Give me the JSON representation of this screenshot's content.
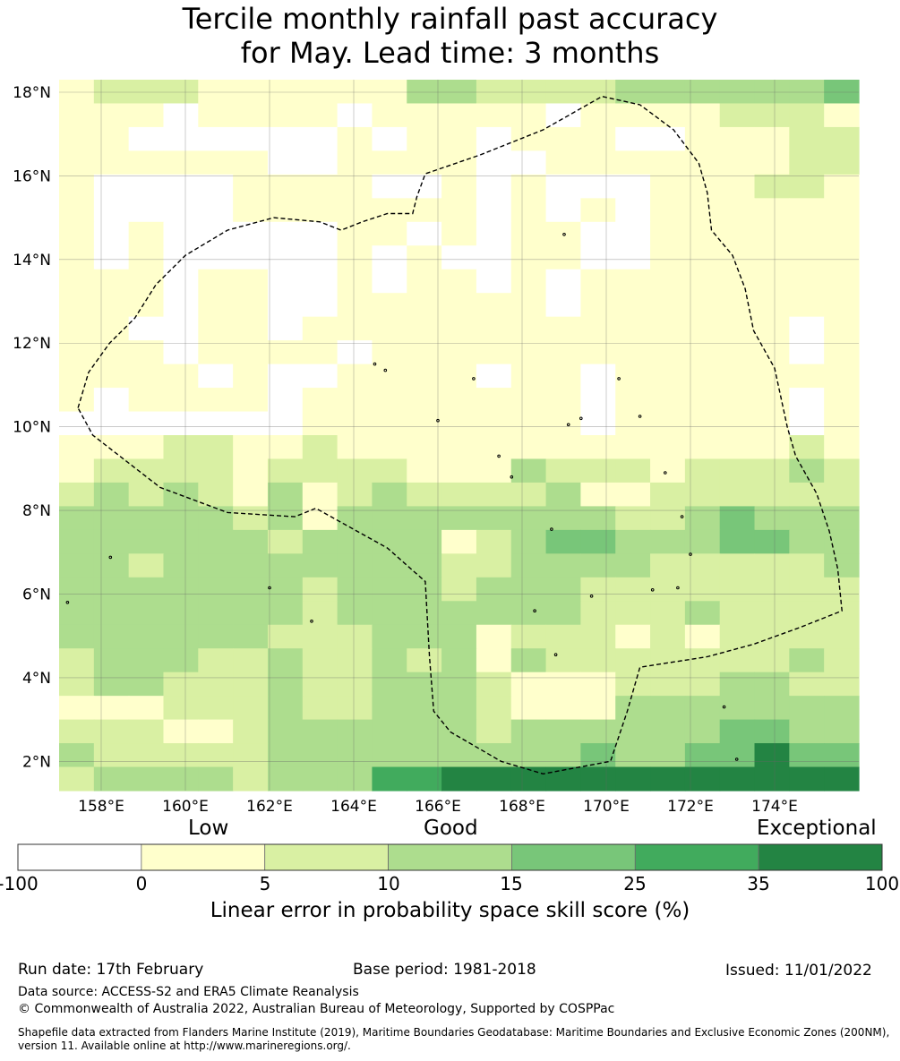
{
  "title": {
    "line1": "Tercile monthly rainfall past accuracy",
    "line2": "for May. Lead time: 3 months"
  },
  "map": {
    "lon_range": [
      157.0,
      176.0
    ],
    "lat_range": [
      1.3,
      18.3
    ],
    "lat_ticks": [
      {
        "value": 18,
        "label": "18°N"
      },
      {
        "value": 16,
        "label": "16°N"
      },
      {
        "value": 14,
        "label": "14°N"
      },
      {
        "value": 12,
        "label": "12°N"
      },
      {
        "value": 10,
        "label": "10°N"
      },
      {
        "value": 8,
        "label": "8°N"
      },
      {
        "value": 6,
        "label": "6°N"
      },
      {
        "value": 4,
        "label": "4°N"
      },
      {
        "value": 2,
        "label": "2°N"
      }
    ],
    "lon_ticks": [
      {
        "value": 158,
        "label": "158°E"
      },
      {
        "value": 160,
        "label": "160°E"
      },
      {
        "value": 162,
        "label": "162°E"
      },
      {
        "value": 164,
        "label": "164°E"
      },
      {
        "value": 166,
        "label": "166°E"
      },
      {
        "value": 168,
        "label": "168°E"
      },
      {
        "value": 170,
        "label": "170°E"
      },
      {
        "value": 172,
        "label": "172°E"
      },
      {
        "value": 174,
        "label": "174°E"
      }
    ],
    "grid": {
      "cols": 23,
      "rows": 30,
      "cells": [
        "12221111113322223333334",
        "11101111011111011112221",
        "11000000101101110011122",
        "11111100111100111111122",
        "10000111100101000111221",
        "10000111111101010111111",
        "10100000110101100111111",
        "10100000101001100111111",
        "11101100101101011111111",
        "11101100111111011111111",
        "11001101111111111111101",
        "11101111011111111111101",
        "11110100111101101111111",
        "10111101111111101111101",
        "00000001111111101111101",
        "11122112111111111111121",
        "12222122221113222122232",
        "23232131232222311222222",
        "33333231333333332234333",
        "33333323333123443334433",
        "33233333333223333222223",
        "33333332333233322222222",
        "33333332333333322232222",
        "33333322233312221212222",
        "23332232232313222222232",
        "23322232233321112223322",
        "11122232233321113333333",
        "22211233333323333334433",
        "32222233333333343344444",
        "23333233355564555555555"
      ],
      "overrides": [
        {
          "row": 29,
          "col": 11,
          "cat": 6
        },
        {
          "row": 29,
          "col": 13,
          "cat": 6
        },
        {
          "row": 29,
          "col": 14,
          "cat": 6
        },
        {
          "row": 29,
          "col": 15,
          "cat": 6
        },
        {
          "row": 29,
          "col": 16,
          "cat": 6
        },
        {
          "row": 29,
          "col": 17,
          "cat": 6
        },
        {
          "row": 29,
          "col": 18,
          "cat": 6
        },
        {
          "row": 29,
          "col": 19,
          "cat": 6
        },
        {
          "row": 29,
          "col": 20,
          "cat": 6
        },
        {
          "row": 29,
          "col": 21,
          "cat": 6
        },
        {
          "row": 29,
          "col": 22,
          "cat": 6
        },
        {
          "row": 28,
          "col": 20,
          "cat": 6
        }
      ]
    },
    "boundary": [
      [
        157.45,
        10.45
      ],
      [
        157.7,
        11.3
      ],
      [
        158.2,
        12.0
      ],
      [
        158.8,
        12.6
      ],
      [
        159.3,
        13.4
      ],
      [
        160.0,
        14.1
      ],
      [
        161.0,
        14.7
      ],
      [
        162.1,
        15.0
      ],
      [
        163.2,
        14.9
      ],
      [
        163.7,
        14.7
      ],
      [
        164.2,
        14.9
      ],
      [
        164.8,
        15.1
      ],
      [
        165.4,
        15.1
      ],
      [
        165.5,
        15.5
      ],
      [
        165.7,
        16.05
      ],
      [
        167.0,
        16.5
      ],
      [
        168.5,
        17.1
      ],
      [
        169.9,
        17.9
      ],
      [
        170.8,
        17.7
      ],
      [
        171.6,
        17.1
      ],
      [
        172.2,
        16.3
      ],
      [
        172.4,
        15.6
      ],
      [
        172.5,
        14.7
      ],
      [
        173.0,
        14.1
      ],
      [
        173.3,
        13.3
      ],
      [
        173.5,
        12.3
      ],
      [
        174.0,
        11.4
      ],
      [
        174.3,
        10.0
      ],
      [
        174.5,
        9.3
      ],
      [
        175.0,
        8.4
      ],
      [
        175.3,
        7.5
      ],
      [
        175.5,
        6.6
      ],
      [
        175.6,
        5.6
      ],
      [
        174.6,
        5.2
      ],
      [
        173.5,
        4.8
      ],
      [
        172.4,
        4.5
      ],
      [
        170.8,
        4.25
      ],
      [
        170.5,
        3.2
      ],
      [
        170.1,
        2.0
      ],
      [
        168.5,
        1.7
      ],
      [
        167.5,
        2.0
      ],
      [
        166.3,
        2.7
      ],
      [
        165.9,
        3.2
      ],
      [
        165.8,
        4.5
      ],
      [
        165.7,
        6.3
      ],
      [
        164.8,
        7.1
      ],
      [
        163.1,
        8.05
      ],
      [
        162.6,
        7.85
      ],
      [
        161.0,
        7.95
      ],
      [
        159.4,
        8.55
      ],
      [
        157.8,
        9.8
      ],
      [
        157.45,
        10.45
      ]
    ],
    "islands": [
      [
        158.22,
        6.88
      ],
      [
        157.2,
        5.8
      ],
      [
        162.0,
        6.15
      ],
      [
        163.0,
        5.35
      ],
      [
        164.5,
        11.5
      ],
      [
        164.75,
        11.35
      ],
      [
        166.0,
        10.15
      ],
      [
        166.85,
        11.15
      ],
      [
        167.45,
        9.3
      ],
      [
        167.75,
        8.8
      ],
      [
        169.0,
        14.6
      ],
      [
        168.3,
        5.6
      ],
      [
        169.65,
        5.95
      ],
      [
        168.7,
        7.55
      ],
      [
        170.8,
        10.25
      ],
      [
        171.4,
        8.9
      ],
      [
        171.8,
        7.85
      ],
      [
        172.0,
        6.95
      ],
      [
        171.7,
        6.15
      ],
      [
        172.8,
        3.3
      ],
      [
        173.1,
        2.05
      ],
      [
        170.3,
        11.15
      ],
      [
        169.1,
        10.05
      ],
      [
        169.4,
        10.2
      ],
      [
        171.1,
        6.1
      ],
      [
        168.8,
        4.55
      ]
    ]
  },
  "colorbar": {
    "colors": [
      "#ffffff",
      "#ffffcc",
      "#d9f0a3",
      "#addd8e",
      "#78c679",
      "#41ab5d",
      "#238443"
    ],
    "ticks": [
      "-100",
      "0",
      "5",
      "10",
      "15",
      "25",
      "35",
      "100"
    ],
    "categories": {
      "low": "Low",
      "good": "Good",
      "exceptional": "Exceptional"
    },
    "title": "Linear error in probability space skill score (%)"
  },
  "footer": {
    "run_date": "Run date: 17th February",
    "base_period": "Base period: 1981-2018",
    "issued": "Issued: 11/01/2022",
    "data_source": "Data source: ACCESS-S2 and ERA5 Climate Reanalysis",
    "copyright": "© Commonwealth of Australia 2022, Australian Bureau of Meteorology, Supported by COSPPac",
    "shapefile_line1": "Shapefile data extracted from Flanders Marine Institute (2019), Maritime Boundaries Geodatabase: Maritime Boundaries and Exclusive Economic Zones (200NM),",
    "shapefile_line2": "version 11. Available online at http://www.marineregions.org/."
  }
}
